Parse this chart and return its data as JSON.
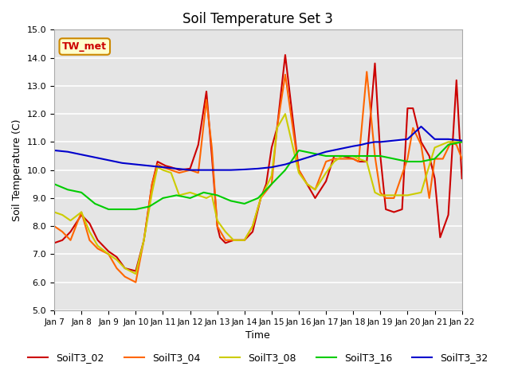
{
  "title": "Soil Temperature Set 3",
  "xlabel": "Time",
  "ylabel": "Soil Temperature (C)",
  "ylim": [
    5.0,
    15.0
  ],
  "yticks": [
    5.0,
    6.0,
    7.0,
    8.0,
    9.0,
    10.0,
    11.0,
    12.0,
    13.0,
    14.0,
    15.0
  ],
  "xtick_labels": [
    "Jan 7",
    "Jan 8",
    "Jan 9",
    "Jan 10",
    "Jan 11",
    "Jan 12",
    "Jan 13",
    "Jan 14",
    "Jan 15",
    "Jan 16",
    "Jan 17",
    "Jan 18",
    "Jan 19",
    "Jan 20",
    "Jan 21",
    "Jan 22"
  ],
  "background_color": "#e5e5e5",
  "annotation_text": "TW_met",
  "annotation_color": "#cc0000",
  "annotation_bg": "#ffffcc",
  "annotation_border": "#cc8800",
  "series": {
    "SoilT3_02": {
      "color": "#cc0000",
      "x": [
        0,
        0.3,
        0.6,
        1.0,
        1.3,
        1.6,
        2.0,
        2.3,
        2.6,
        3.0,
        3.3,
        3.6,
        3.8,
        4.0,
        4.1,
        4.3,
        4.6,
        5.0,
        5.3,
        5.6,
        5.8,
        6.0,
        6.1,
        6.3,
        6.6,
        7.0,
        7.3,
        7.6,
        7.8,
        8.0,
        8.2,
        8.5,
        9.0,
        9.3,
        9.6,
        10.0,
        10.3,
        10.6,
        11.0,
        11.2,
        11.5,
        11.8,
        12.0,
        12.2,
        12.5,
        12.8,
        13.0,
        13.2,
        13.5,
        13.8,
        14.0,
        14.2,
        14.5,
        14.8,
        15.0
      ],
      "y": [
        7.4,
        7.5,
        7.8,
        8.4,
        8.1,
        7.5,
        7.1,
        6.9,
        6.5,
        6.4,
        7.5,
        9.5,
        10.3,
        10.2,
        10.15,
        10.1,
        10.0,
        10.05,
        10.9,
        12.8,
        10.5,
        8.0,
        7.6,
        7.4,
        7.5,
        7.5,
        7.8,
        9.0,
        9.5,
        10.8,
        11.5,
        14.1,
        10.0,
        9.5,
        9.0,
        9.6,
        10.5,
        10.5,
        10.4,
        10.3,
        10.3,
        13.8,
        10.5,
        8.6,
        8.5,
        8.6,
        12.2,
        12.2,
        11.0,
        10.5,
        9.7,
        7.6,
        8.4,
        13.2,
        9.7
      ]
    },
    "SoilT3_04": {
      "color": "#ff6600",
      "x": [
        0,
        0.3,
        0.6,
        1.0,
        1.3,
        1.6,
        2.0,
        2.3,
        2.6,
        3.0,
        3.3,
        3.6,
        3.8,
        4.0,
        4.3,
        4.6,
        5.0,
        5.3,
        5.6,
        5.8,
        6.0,
        6.3,
        6.6,
        7.0,
        7.3,
        7.6,
        8.0,
        8.2,
        8.5,
        9.0,
        9.3,
        9.6,
        10.0,
        10.3,
        10.6,
        11.0,
        11.2,
        11.5,
        11.8,
        12.0,
        12.2,
        12.5,
        13.0,
        13.2,
        13.5,
        13.8,
        14.0,
        14.3,
        14.6,
        14.8,
        15.0
      ],
      "y": [
        8.0,
        7.8,
        7.5,
        8.5,
        7.5,
        7.2,
        7.0,
        6.5,
        6.2,
        6.0,
        7.5,
        9.5,
        10.2,
        10.1,
        10.0,
        9.9,
        10.0,
        9.9,
        12.5,
        10.8,
        8.0,
        7.5,
        7.5,
        7.5,
        8.0,
        9.0,
        9.5,
        11.5,
        13.4,
        10.0,
        9.5,
        9.3,
        10.3,
        10.4,
        10.4,
        10.4,
        10.3,
        13.5,
        10.5,
        9.2,
        9.0,
        9.0,
        10.4,
        11.5,
        10.9,
        9.0,
        10.4,
        10.4,
        11.0,
        10.9,
        10.4
      ]
    },
    "SoilT3_08": {
      "color": "#cccc00",
      "x": [
        0,
        0.3,
        0.6,
        1.0,
        1.3,
        1.6,
        2.0,
        2.3,
        2.6,
        3.0,
        3.3,
        3.6,
        3.8,
        4.0,
        4.3,
        4.6,
        5.0,
        5.3,
        5.6,
        5.8,
        6.0,
        6.3,
        6.6,
        7.0,
        7.3,
        7.6,
        8.0,
        8.2,
        8.5,
        9.0,
        9.3,
        9.6,
        10.0,
        10.3,
        10.6,
        11.0,
        11.2,
        11.5,
        11.8,
        12.0,
        12.5,
        13.0,
        13.5,
        14.0,
        14.5,
        15.0
      ],
      "y": [
        8.5,
        8.4,
        8.2,
        8.5,
        7.8,
        7.3,
        7.0,
        6.8,
        6.5,
        6.3,
        7.5,
        9.2,
        10.1,
        10.0,
        9.9,
        9.1,
        9.2,
        9.1,
        9.0,
        9.1,
        8.2,
        7.8,
        7.5,
        7.5,
        8.0,
        9.0,
        9.8,
        11.5,
        12.0,
        9.9,
        9.5,
        9.3,
        9.9,
        10.3,
        10.5,
        10.5,
        10.4,
        10.3,
        9.2,
        9.1,
        9.1,
        9.1,
        9.2,
        10.8,
        11.0,
        11.0
      ]
    },
    "SoilT3_16": {
      "color": "#00cc00",
      "x": [
        0,
        0.5,
        1.0,
        1.5,
        2.0,
        2.5,
        3.0,
        3.5,
        4.0,
        4.5,
        5.0,
        5.5,
        6.0,
        6.5,
        7.0,
        7.5,
        8.0,
        8.5,
        9.0,
        9.5,
        10.0,
        10.5,
        11.0,
        11.5,
        12.0,
        12.5,
        13.0,
        13.5,
        14.0,
        14.5,
        15.0
      ],
      "y": [
        9.5,
        9.3,
        9.2,
        8.8,
        8.6,
        8.6,
        8.6,
        8.7,
        9.0,
        9.1,
        9.0,
        9.2,
        9.1,
        8.9,
        8.8,
        9.0,
        9.5,
        10.0,
        10.7,
        10.6,
        10.5,
        10.5,
        10.5,
        10.5,
        10.5,
        10.4,
        10.3,
        10.3,
        10.4,
        10.9,
        11.0
      ]
    },
    "SoilT3_32": {
      "color": "#0000cc",
      "x": [
        0,
        0.5,
        1.0,
        1.5,
        2.0,
        2.5,
        3.0,
        3.5,
        4.0,
        4.5,
        5.0,
        5.5,
        6.0,
        6.5,
        7.0,
        7.5,
        8.0,
        8.5,
        9.0,
        9.5,
        10.0,
        10.5,
        11.0,
        11.3,
        11.5,
        11.8,
        12.0,
        12.5,
        13.0,
        13.5,
        14.0,
        14.5,
        15.0
      ],
      "y": [
        10.7,
        10.65,
        10.55,
        10.45,
        10.35,
        10.25,
        10.2,
        10.15,
        10.1,
        10.05,
        10.0,
        10.0,
        10.0,
        10.0,
        10.02,
        10.05,
        10.1,
        10.2,
        10.35,
        10.5,
        10.65,
        10.75,
        10.85,
        10.9,
        10.95,
        11.0,
        11.0,
        11.05,
        11.1,
        11.55,
        11.1,
        11.1,
        11.05
      ]
    }
  }
}
